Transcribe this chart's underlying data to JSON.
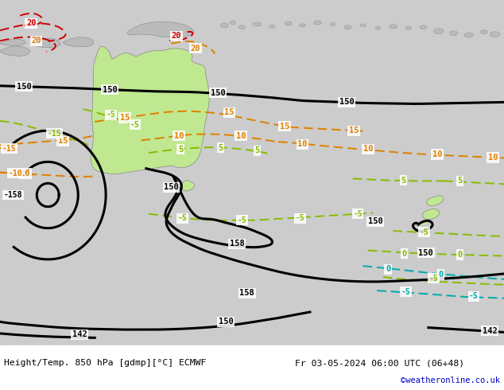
{
  "title_left": "Height/Temp. 850 hPa [gdmp][°C] ECMWF",
  "title_right": "Fr 03-05-2024 06:00 UTC (06+48)",
  "credit": "©weatheronline.co.uk",
  "fig_width": 6.34,
  "fig_height": 4.9,
  "dpi": 100,
  "bg_color": "#d0d0d0",
  "ocean_color": "#cccccc",
  "aus_color": "#c0e890",
  "land_gray": "#bbbbbb",
  "credit_color": "#0000cc",
  "white": "#ffffff",
  "black": "#000000",
  "orange": "#e08000",
  "green": "#88bb00",
  "cyan": "#00aaaa",
  "red": "#cc0000",
  "bottom_bar_height": 0.115
}
